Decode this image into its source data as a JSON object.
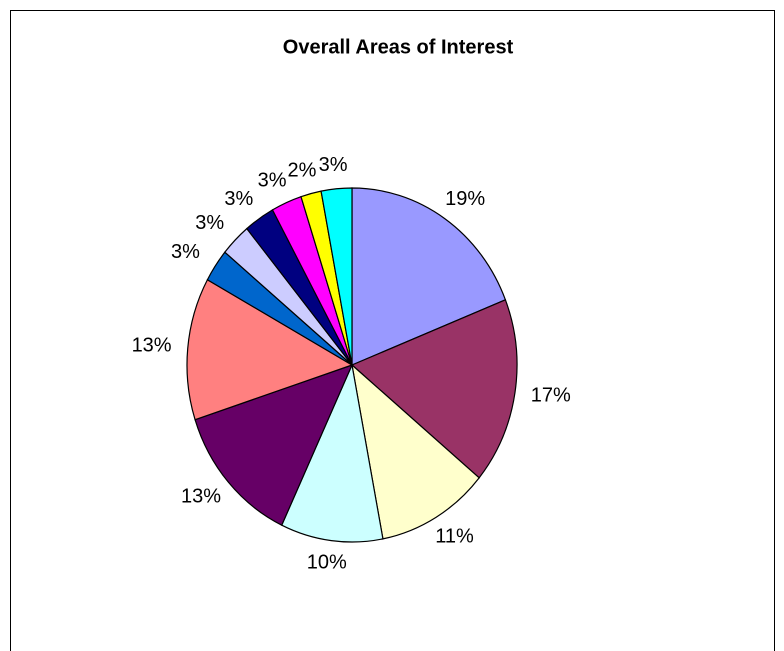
{
  "chart_data": {
    "type": "pie",
    "title": "Overall Areas of Interest",
    "values": [
      19,
      17,
      11,
      10,
      13,
      13,
      3,
      3,
      3,
      3,
      2,
      3
    ],
    "value_labels": [
      "19%",
      "17%",
      "11%",
      "10%",
      "13%",
      "13%",
      "3%",
      "3%",
      "3%",
      "3%",
      "2%",
      "3%"
    ],
    "colors": [
      "#9999ff",
      "#993366",
      "#ffffcc",
      "#ccffff",
      "#660066",
      "#ff8080",
      "#0066cc",
      "#ccccff",
      "#000080",
      "#ff00ff",
      "#ffff00",
      "#00ffff"
    ]
  }
}
